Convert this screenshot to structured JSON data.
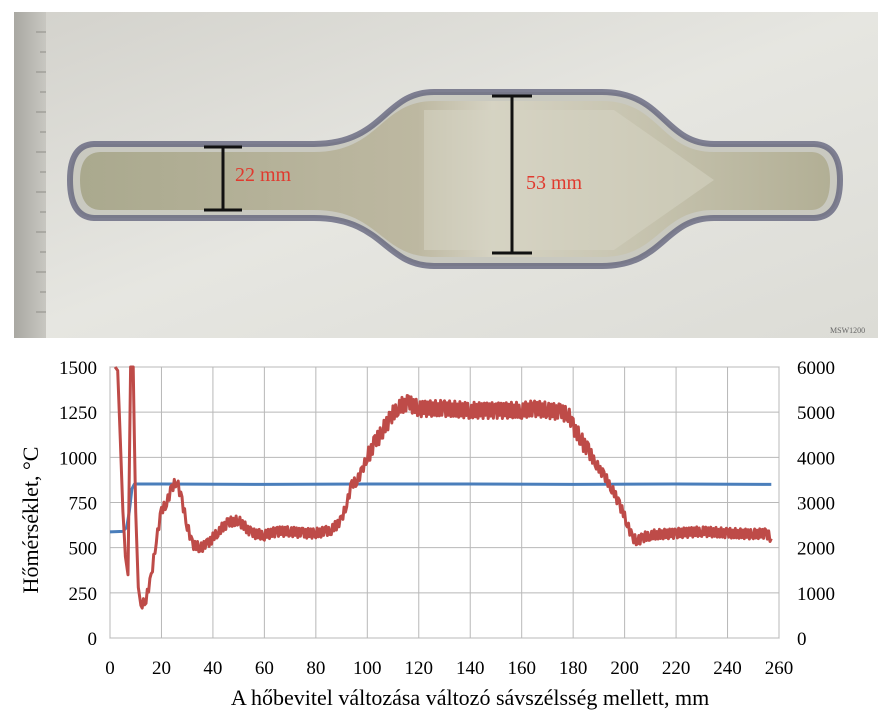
{
  "photo": {
    "narrow_label": "22 mm",
    "wide_label": "53 mm",
    "watermark": "MSW1200",
    "label_color": "#e03a2e"
  },
  "chart_data": {
    "type": "line",
    "ylabel": "Hőmérséklet, °C",
    "xlabel": "A hőbevitel változása változó sávszélsség mellett, mm",
    "xlim": [
      0,
      260
    ],
    "ylim": [
      0,
      1500
    ],
    "y2lim": [
      0,
      6000
    ],
    "x_ticks": [
      0,
      20,
      40,
      60,
      80,
      100,
      120,
      140,
      160,
      180,
      200,
      220,
      240,
      260
    ],
    "y_ticks": [
      0,
      250,
      500,
      750,
      1000,
      1250,
      1500
    ],
    "y2_ticks": [
      0,
      1000,
      2000,
      3000,
      4000,
      5000,
      6000
    ],
    "grid": true,
    "legend": "none",
    "series": [
      {
        "axis": "right",
        "color": "#4a7ebb",
        "x": [
          0,
          5,
          6.5,
          7.5,
          8.5,
          9.5,
          20,
          60,
          100,
          140,
          180,
          220,
          257
        ],
        "values": [
          2350,
          2360,
          2450,
          2800,
          3300,
          3410,
          3410,
          3400,
          3410,
          3410,
          3400,
          3410,
          3400
        ]
      },
      {
        "axis": "left",
        "color": "#be4b48",
        "noisy": true,
        "x": [
          2,
          3,
          4,
          5,
          6,
          7,
          8,
          9,
          10,
          11,
          12,
          14,
          16,
          18,
          20,
          22,
          24,
          26,
          28,
          30,
          32,
          35,
          38,
          42,
          46,
          50,
          55,
          60,
          65,
          70,
          75,
          80,
          84,
          86,
          90,
          92,
          94,
          96,
          98,
          100,
          103,
          106,
          109,
          112,
          116,
          120,
          130,
          140,
          150,
          160,
          165,
          170,
          175,
          178,
          180,
          183,
          186,
          189,
          192,
          195,
          198,
          201,
          203,
          205,
          207,
          210,
          220,
          230,
          240,
          250,
          255,
          257
        ],
        "values": [
          1500,
          1480,
          1100,
          700,
          450,
          350,
          1500,
          1500,
          700,
          280,
          180,
          220,
          330,
          550,
          700,
          750,
          830,
          870,
          760,
          620,
          520,
          500,
          520,
          590,
          640,
          650,
          580,
          570,
          590,
          590,
          580,
          580,
          590,
          600,
          650,
          750,
          850,
          870,
          930,
          1000,
          1080,
          1150,
          1220,
          1280,
          1300,
          1270,
          1270,
          1260,
          1260,
          1260,
          1270,
          1260,
          1250,
          1240,
          1170,
          1100,
          1030,
          960,
          900,
          830,
          740,
          640,
          550,
          540,
          555,
          570,
          580,
          590,
          580,
          575,
          580,
          550
        ]
      }
    ]
  }
}
